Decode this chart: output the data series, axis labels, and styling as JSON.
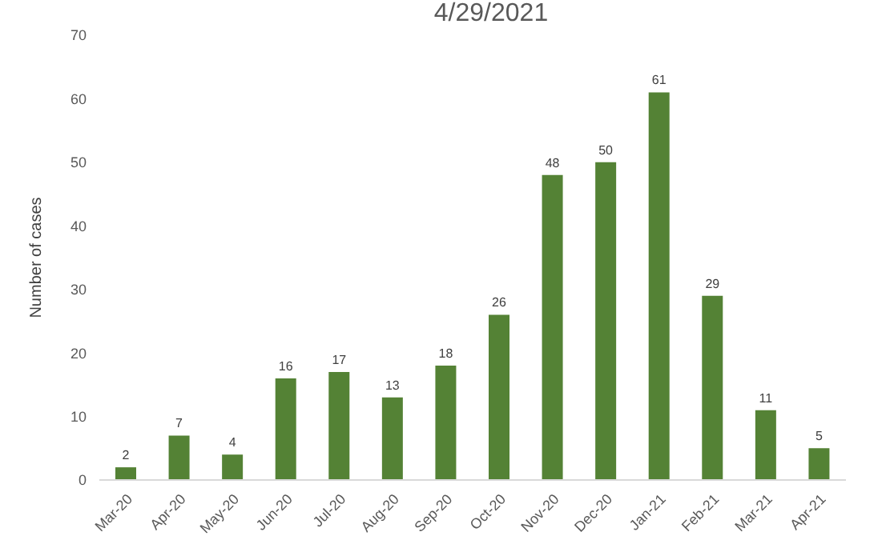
{
  "chart_data": {
    "type": "bar",
    "title": "4/29/2021",
    "ylabel": "Number of cases",
    "categories": [
      "Mar-20",
      "Apr-20",
      "May-20",
      "Jun-20",
      "Jul-20",
      "Aug-20",
      "Sep-20",
      "Oct-20",
      "Nov-20",
      "Dec-20",
      "Jan-21",
      "Feb-21",
      "Mar-21",
      "Apr-21"
    ],
    "values": [
      2,
      7,
      4,
      16,
      17,
      13,
      18,
      26,
      48,
      50,
      61,
      29,
      11,
      5
    ],
    "color": "#548235",
    "ylim": [
      0,
      70
    ],
    "yticks": [
      0,
      10,
      20,
      30,
      40,
      50,
      60,
      70
    ],
    "grid": false,
    "data_labels": true
  }
}
